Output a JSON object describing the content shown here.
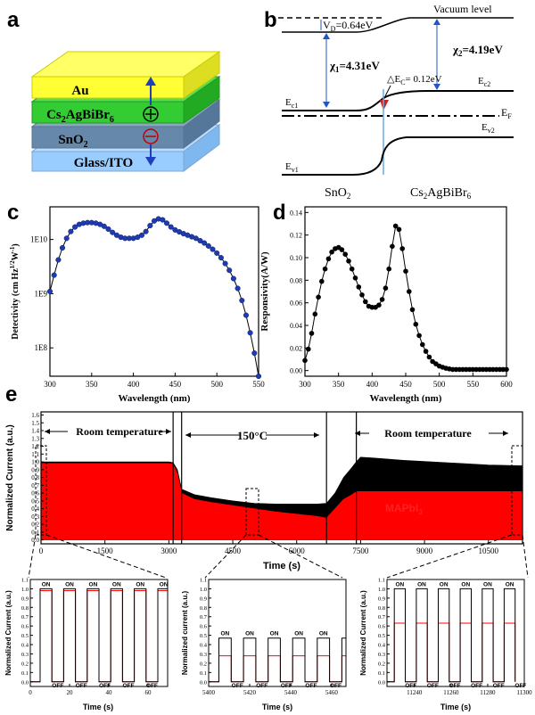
{
  "panels": {
    "a": {
      "letter": "a",
      "layers": {
        "au": "Au",
        "perov_prefix": "Cs",
        "perov_s1": "2",
        "perov_mid": "AgBiBr",
        "perov_s2": "6",
        "sno2_prefix": "SnO",
        "sno2_sub": "2",
        "glass": "Glass/ITO"
      },
      "colors": {
        "au": "#ffff33",
        "perov": "#33cc33",
        "sno2": "#6688aa",
        "glass": "#99ccff",
        "arrow": "#1f3fbf",
        "minus": "#c00000"
      }
    },
    "b": {
      "letter": "b",
      "vacuum_level": "Vacuum level",
      "vd": "V",
      "vd_sub": "D",
      "vd_value": "=0.64eV",
      "chi1": "χ",
      "chi1_sub": "1",
      "chi1_value": "=4.31eV",
      "chi2": "χ",
      "chi2_sub": "2",
      "chi2_value": "=4.19eV",
      "dec": "△E",
      "dec_sub": "C",
      "dec_value": "= 0.12eV",
      "ec1": "E",
      "ec1_sub": "c1",
      "ec2": "E",
      "ec2_sub": "c2",
      "ef": "E",
      "ef_sub": "F",
      "ev1": "E",
      "ev1_sub": "v1",
      "ev2": "E",
      "ev2_sub": "v2",
      "left_material": "SnO",
      "left_material_sub": "2",
      "right_material": "Cs",
      "right_s1": "2",
      "right_mid": "AgBiBr",
      "right_s2": "6"
    },
    "c": {
      "letter": "c",
      "ylabel": "Detectivity (cm Hz",
      "ylabel_sup": "1/2",
      "ylabel_end": "W",
      "ylabel_sup2": "-1",
      "ylabel_close": ")"
    },
    "d": {
      "letter": "d"
    },
    "e": {
      "letter": "e",
      "room_temp_1": "Room temperature",
      "hot": "150°C",
      "room_temp_2": "Room temperature",
      "legend_cs": "Cs",
      "legend_cs_s1": "2",
      "legend_cs_mid": "AgBiBr",
      "legend_cs_s2": "6",
      "legend_map": "MAPbI",
      "legend_map_sub": "3",
      "on": "ON",
      "off": "OFF",
      "inset_ylabel_1": "Normalized Current (a.u.)",
      "inset_ylabel_2": "Normalized current (a.u.)",
      "inset_ylabel_3": "Normalized Current (a.u.)",
      "inset_xlabel": "Time (s)"
    }
  },
  "chart_data": [
    {
      "id": "c",
      "type": "scatter",
      "title": "",
      "xlabel": "Wavelength (nm)",
      "ylabel": "Detectivity (cm Hz1/2 W-1)",
      "yscale": "log",
      "xlim": [
        300,
        550
      ],
      "ylim": [
        30000000.0,
        40000000000.0
      ],
      "xticks": [
        300,
        350,
        400,
        450,
        500,
        550
      ],
      "yticks": [
        100000000.0,
        1000000000.0,
        10000000000.0
      ],
      "ytick_labels": [
        "1E8",
        "1E9",
        "1E10"
      ],
      "marker_color": "#1f3bb3",
      "x": [
        300,
        305,
        310,
        315,
        320,
        325,
        330,
        335,
        340,
        345,
        350,
        355,
        360,
        365,
        370,
        375,
        380,
        385,
        390,
        395,
        400,
        405,
        410,
        415,
        420,
        425,
        430,
        435,
        440,
        445,
        450,
        455,
        460,
        465,
        470,
        475,
        480,
        485,
        490,
        495,
        500,
        505,
        510,
        515,
        520,
        525,
        530,
        535,
        540,
        545,
        550
      ],
      "y": [
        1100000000.0,
        2200000000.0,
        4200000000.0,
        7000000000.0,
        10500000000.0,
        14000000000.0,
        17000000000.0,
        19000000000.0,
        20000000000.0,
        20500000000.0,
        20500000000.0,
        20000000000.0,
        19000000000.0,
        17500000000.0,
        15500000000.0,
        13500000000.0,
        12000000000.0,
        11000000000.0,
        10500000000.0,
        10500000000.0,
        10500000000.0,
        11000000000.0,
        12000000000.0,
        14000000000.0,
        18000000000.0,
        22000000000.0,
        24000000000.0,
        23000000000.0,
        20000000000.0,
        17000000000.0,
        15000000000.0,
        13800000000.0,
        12800000000.0,
        12000000000.0,
        11200000000.0,
        10500000000.0,
        9500000000.0,
        8600000000.0,
        7600000000.0,
        6600000000.0,
        5600000000.0,
        4600000000.0,
        3600000000.0,
        2700000000.0,
        1900000000.0,
        1250000000.0,
        750000000.0,
        400000000.0,
        190000000.0,
        80000000.0,
        30000000.0
      ]
    },
    {
      "id": "d",
      "type": "line",
      "title": "",
      "xlabel": "Wavelength (nm)",
      "ylabel": "Responsivity(A/W)",
      "xlim": [
        300,
        600
      ],
      "ylim": [
        -0.005,
        0.145
      ],
      "xticks": [
        300,
        350,
        400,
        450,
        500,
        550,
        600
      ],
      "yticks": [
        0.0,
        0.02,
        0.04,
        0.06,
        0.08,
        0.1,
        0.12,
        0.14
      ],
      "ytick_labels": [
        "0.00",
        "0.02",
        "0.04",
        "0.06",
        "0.08",
        "0.10",
        "0.12",
        "0.14"
      ],
      "x": [
        300,
        305,
        310,
        315,
        320,
        325,
        330,
        335,
        340,
        345,
        350,
        355,
        360,
        365,
        370,
        375,
        380,
        385,
        390,
        395,
        400,
        405,
        410,
        415,
        420,
        425,
        430,
        435,
        440,
        445,
        450,
        455,
        460,
        465,
        470,
        475,
        480,
        485,
        490,
        495,
        500,
        505,
        510,
        515,
        520,
        525,
        530,
        535,
        540,
        545,
        550,
        555,
        560,
        565,
        570,
        575,
        580,
        585,
        590,
        595,
        600
      ],
      "y": [
        0.009,
        0.019,
        0.033,
        0.05,
        0.065,
        0.079,
        0.09,
        0.099,
        0.105,
        0.108,
        0.109,
        0.107,
        0.103,
        0.097,
        0.09,
        0.082,
        0.074,
        0.067,
        0.061,
        0.057,
        0.056,
        0.056,
        0.058,
        0.063,
        0.073,
        0.09,
        0.11,
        0.128,
        0.125,
        0.108,
        0.088,
        0.07,
        0.054,
        0.041,
        0.031,
        0.023,
        0.017,
        0.012,
        0.008,
        0.006,
        0.004,
        0.003,
        0.002,
        0.0015,
        0.001,
        0.001,
        0.001,
        0.001,
        0.001,
        0.001,
        0.001,
        0.001,
        0.001,
        0.001,
        0.001,
        0.001,
        0.001,
        0.001,
        0.001,
        0.001,
        0.001
      ]
    },
    {
      "id": "e-main",
      "type": "area",
      "xlabel": "Time (s)",
      "ylabel": "Normalized Current (a.u.)",
      "xlim": [
        0,
        11300
      ],
      "ylim": [
        -0.05,
        1.64
      ],
      "xticks": [
        0,
        1500,
        3000,
        4500,
        6000,
        7500,
        9000,
        10500
      ],
      "yticks": [
        0.0,
        0.1,
        0.2,
        0.3,
        0.4,
        0.5,
        0.6,
        0.7,
        0.8,
        0.9,
        1.0,
        1.1,
        1.2,
        1.3,
        1.4,
        1.5,
        1.6
      ],
      "ytick_labels": [
        "0.0",
        "0.1",
        "0.2",
        "0.3",
        "0.4",
        "0.5",
        "0.6",
        "0.7",
        "0.8",
        "0.9",
        "1.0",
        "1.1",
        "1.2",
        "1.3",
        "1.4",
        "1.5",
        "1.6"
      ],
      "dividers": [
        3100,
        3300,
        6700,
        7400
      ],
      "series": [
        {
          "name": "Cs2AgBiBr6",
          "color": "#000000",
          "x": [
            0,
            3000,
            3100,
            3200,
            3300,
            3600,
            4000,
            4500,
            5000,
            5500,
            6000,
            6500,
            6700,
            6900,
            7100,
            7300,
            7400,
            7500,
            7800,
            8500,
            9500,
            10500,
            11300
          ],
          "y": [
            1.0,
            1.0,
            0.99,
            0.9,
            0.65,
            0.58,
            0.54,
            0.5,
            0.47,
            0.46,
            0.46,
            0.46,
            0.47,
            0.6,
            0.8,
            0.93,
            1.0,
            1.06,
            1.05,
            1.02,
            0.99,
            0.96,
            0.95
          ]
        },
        {
          "name": "MAPbI3",
          "color": "#ff0000",
          "x": [
            0,
            3000,
            3100,
            3200,
            3300,
            3600,
            4000,
            4500,
            5000,
            5500,
            6000,
            6500,
            6700,
            6900,
            7100,
            7300,
            7400,
            7500,
            7800,
            8500,
            9500,
            10500,
            11300
          ],
          "y": [
            0.98,
            0.98,
            0.97,
            0.85,
            0.6,
            0.52,
            0.48,
            0.44,
            0.4,
            0.36,
            0.33,
            0.3,
            0.28,
            0.4,
            0.52,
            0.58,
            0.62,
            0.62,
            0.62,
            0.62,
            0.62,
            0.62,
            0.62
          ]
        }
      ]
    },
    {
      "id": "e-inset-1",
      "type": "line",
      "xlabel": "Time (s)",
      "ylabel": "Normalized Current (a.u.)",
      "xlim": [
        0,
        70
      ],
      "ylim": [
        -0.05,
        1.1
      ],
      "xticks": [
        0,
        20,
        40,
        60
      ],
      "yticks": [
        0.0,
        0.1,
        0.2,
        0.3,
        0.4,
        0.5,
        0.6,
        0.7,
        0.8,
        0.9,
        1.0,
        1.1
      ],
      "ytick_labels": [
        "0.0",
        "0.1",
        "0.2",
        "0.3",
        "0.4",
        "0.5",
        "0.6",
        "0.7",
        "0.8",
        "0.9",
        "1.0",
        "1.1"
      ],
      "period": 12,
      "on_duration": 6,
      "start": 5,
      "series": [
        {
          "name": "Cs2AgBiBr6",
          "color": "#000000",
          "high": 1.0,
          "low": 0.0
        },
        {
          "name": "MAPbI3",
          "color": "#ff0000",
          "high": 0.98,
          "low": 0.0
        }
      ]
    },
    {
      "id": "e-inset-2",
      "type": "line",
      "xlabel": "Time (s)",
      "ylabel": "Normalized current (a.u.)",
      "xlim": [
        5400,
        5467
      ],
      "ylim": [
        -0.05,
        1.1
      ],
      "xticks": [
        5400,
        5420,
        5440,
        5460
      ],
      "yticks": [
        0.0,
        0.1,
        0.2,
        0.3,
        0.4,
        0.5,
        0.6,
        0.7,
        0.8,
        0.9,
        1.0,
        1.1
      ],
      "ytick_labels": [
        "0.0",
        "0.1",
        "0.2",
        "0.3",
        "0.4",
        "0.5",
        "0.6",
        "0.7",
        "0.8",
        "0.9",
        "1.0",
        "1.1"
      ],
      "period": 12,
      "on_duration": 6,
      "start": 5405,
      "series": [
        {
          "name": "Cs2AgBiBr6",
          "color": "#000000",
          "high": 0.47,
          "low": 0.0
        },
        {
          "name": "MAPbI3",
          "color": "#ff0000",
          "high": 0.28,
          "low": 0.0
        }
      ]
    },
    {
      "id": "e-inset-3",
      "type": "line",
      "xlabel": "Time (s)",
      "ylabel": "Normalized Current (a.u.)",
      "xlim": [
        11225,
        11300
      ],
      "ylim": [
        -0.05,
        1.1
      ],
      "xticks": [
        11240,
        11260,
        11280,
        11300
      ],
      "yticks": [
        0.0,
        0.1,
        0.2,
        0.3,
        0.4,
        0.5,
        0.6,
        0.7,
        0.8,
        0.9,
        1.0,
        1.1
      ],
      "ytick_labels": [
        "0.0",
        "0.1",
        "0.2",
        "0.3",
        "0.4",
        "0.5",
        "0.6",
        "0.7",
        "0.8",
        "0.9",
        "1.0",
        "1.1"
      ],
      "period": 12,
      "on_duration": 6,
      "start": 11229,
      "series": [
        {
          "name": "Cs2AgBiBr6",
          "color": "#000000",
          "high": 1.0,
          "low": 0.0
        },
        {
          "name": "MAPbI3",
          "color": "#ff0000",
          "high": 0.63,
          "low": 0.0
        }
      ]
    }
  ]
}
